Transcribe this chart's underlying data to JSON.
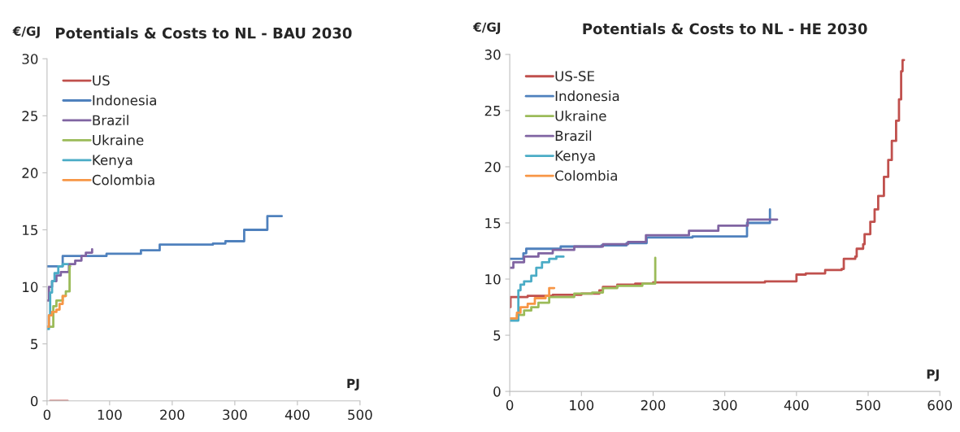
{
  "chart_data": [
    {
      "type": "step",
      "title": "Potentials & Costs to NL - BAU 2030",
      "xlabel": "PJ",
      "ylabel": "€/GJ",
      "xlim": [
        0,
        500
      ],
      "xticks": [
        0,
        100,
        200,
        300,
        400,
        500
      ],
      "ylim": [
        0,
        30
      ],
      "yticks": [
        0,
        5,
        10,
        15,
        20,
        25,
        30
      ],
      "grid": false,
      "legend": "top left",
      "series": [
        {
          "name": "US",
          "color": "#c0504d",
          "x": [
            5,
            33
          ],
          "values": [
            0,
            0
          ]
        },
        {
          "name": "Indonesia",
          "color": "#4f81bd",
          "x": [
            0,
            25,
            95,
            150,
            180,
            265,
            285,
            315,
            352,
            375
          ],
          "values": [
            11.8,
            12.7,
            12.9,
            13.2,
            13.7,
            13.8,
            14.0,
            15.0,
            16.2,
            16.2
          ]
        },
        {
          "name": "Brazil",
          "color": "#8064a2",
          "x": [
            0,
            3,
            8,
            15,
            22,
            35,
            45,
            55,
            62,
            72
          ],
          "values": [
            8.8,
            10.0,
            10.5,
            11.0,
            11.3,
            12.0,
            12.3,
            12.7,
            13.0,
            13.3
          ]
        },
        {
          "name": "Ukraine",
          "color": "#9bbb59",
          "x": [
            0,
            10,
            15,
            25,
            30,
            36,
            37
          ],
          "values": [
            6.5,
            8.3,
            8.8,
            9.2,
            9.6,
            11.8,
            11.8
          ]
        },
        {
          "name": "Kenya",
          "color": "#4bacc6",
          "x": [
            0,
            3,
            5,
            8,
            12,
            18,
            25,
            33
          ],
          "values": [
            6.3,
            7.5,
            9.5,
            10.5,
            11.2,
            11.8,
            12.0,
            12.0
          ]
        },
        {
          "name": "Colombia",
          "color": "#f79646",
          "x": [
            0,
            3,
            8,
            15,
            20,
            25,
            30
          ],
          "values": [
            6.5,
            7.5,
            7.8,
            8.0,
            8.5,
            9.2,
            9.2
          ]
        }
      ]
    },
    {
      "type": "step",
      "title": "Potentials & Costs to NL - HE 2030",
      "xlabel": "PJ",
      "ylabel": "€/GJ",
      "xlim": [
        0,
        600
      ],
      "xticks": [
        0,
        100,
        200,
        300,
        400,
        500,
        600
      ],
      "ylim": [
        0,
        30
      ],
      "yticks": [
        0,
        5,
        10,
        15,
        20,
        25,
        30
      ],
      "grid": false,
      "legend": "top left",
      "series": [
        {
          "name": "US-SE",
          "color": "#c0504d",
          "x": [
            0,
            1,
            25,
            60,
            100,
            125,
            130,
            150,
            175,
            200,
            356,
            400,
            413,
            440,
            463,
            466,
            482,
            484,
            493,
            495,
            503,
            509,
            514,
            522,
            528,
            533,
            539,
            543,
            546,
            548,
            550
          ],
          "values": [
            7.5,
            8.4,
            8.5,
            8.6,
            8.7,
            9.0,
            9.3,
            9.5,
            9.6,
            9.7,
            9.8,
            10.4,
            10.5,
            10.8,
            10.9,
            11.8,
            12.0,
            12.7,
            13.1,
            14.0,
            15.1,
            16.2,
            17.4,
            19.1,
            20.6,
            22.3,
            24.1,
            26.0,
            28.5,
            29.5,
            29.5
          ]
        },
        {
          "name": "Indonesia",
          "color": "#4f81bd",
          "x": [
            0,
            19,
            23,
            71,
            128,
            163,
            191,
            255,
            331,
            363,
            363
          ],
          "values": [
            11.8,
            12.3,
            12.7,
            12.9,
            13.0,
            13.2,
            13.7,
            13.8,
            15.0,
            16.2,
            15.0
          ]
        },
        {
          "name": "Ukraine",
          "color": "#9bbb59",
          "x": [
            0,
            10,
            20,
            30,
            40,
            55,
            90,
            115,
            130,
            150,
            185,
            203,
            203
          ],
          "values": [
            6.5,
            6.8,
            7.2,
            7.5,
            7.9,
            8.4,
            8.7,
            8.8,
            9.2,
            9.4,
            9.6,
            11.9,
            9.7
          ]
        },
        {
          "name": "Brazil",
          "color": "#8064a2",
          "x": [
            0,
            5,
            20,
            40,
            60,
            90,
            130,
            165,
            190,
            250,
            291,
            332,
            373
          ],
          "values": [
            11.0,
            11.5,
            12.0,
            12.3,
            12.6,
            12.9,
            13.1,
            13.3,
            13.9,
            14.3,
            14.75,
            15.3,
            15.3
          ]
        },
        {
          "name": "Kenya",
          "color": "#4bacc6",
          "x": [
            0,
            12,
            15,
            20,
            30,
            37,
            45,
            55,
            65,
            75
          ],
          "values": [
            6.3,
            9.0,
            9.5,
            9.8,
            10.3,
            11.0,
            11.5,
            11.8,
            12.0,
            12.0
          ]
        },
        {
          "name": "Colombia",
          "color": "#f79646",
          "x": [
            0,
            10,
            15,
            25,
            35,
            50,
            55,
            62
          ],
          "values": [
            6.5,
            7.0,
            7.5,
            7.8,
            8.3,
            8.5,
            9.2,
            9.2
          ]
        }
      ]
    }
  ]
}
